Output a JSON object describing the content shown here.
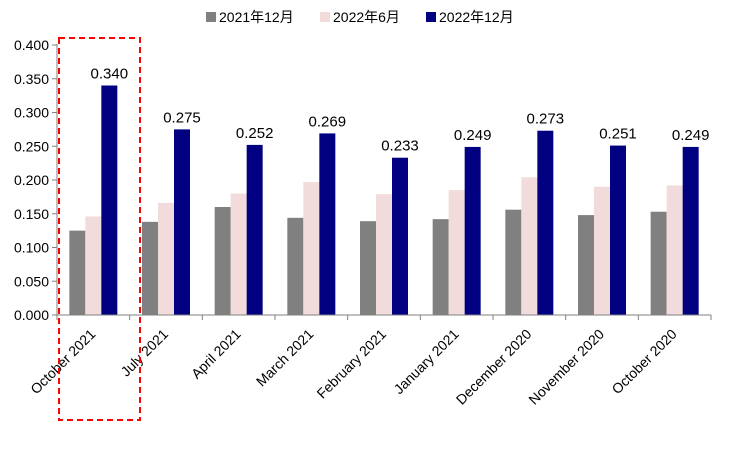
{
  "chart_data": {
    "type": "bar",
    "title": "",
    "xlabel": "",
    "ylabel": "",
    "ylim": [
      0,
      0.4
    ],
    "yticks": [
      "0.000",
      "0.050",
      "0.100",
      "0.150",
      "0.200",
      "0.250",
      "0.300",
      "0.350",
      "0.400"
    ],
    "categories": [
      "October 2021",
      "July 2021",
      "April 2021",
      "March 2021",
      "February 2021",
      "January 2021",
      "December 2020",
      "November 2020",
      "October 2020"
    ],
    "series": [
      {
        "name": "2021年12月",
        "color": "#808080",
        "values": [
          0.125,
          0.138,
          0.16,
          0.144,
          0.139,
          0.142,
          0.156,
          0.148,
          0.153
        ]
      },
      {
        "name": "2022年6月",
        "color": "#F2DCDB",
        "values": [
          0.146,
          0.166,
          0.18,
          0.197,
          0.179,
          0.185,
          0.204,
          0.19,
          0.192
        ]
      },
      {
        "name": "2022年12月",
        "color": "#000080",
        "values": [
          0.34,
          0.275,
          0.252,
          0.269,
          0.233,
          0.249,
          0.273,
          0.251,
          0.249
        ],
        "labels": [
          "0.340",
          "0.275",
          "0.252",
          "0.269",
          "0.233",
          "0.249",
          "0.273",
          "0.251",
          "0.249"
        ]
      }
    ],
    "legend_position": "top",
    "highlight": {
      "category": "October 2021",
      "style": "red dashed box"
    },
    "grid": false
  }
}
